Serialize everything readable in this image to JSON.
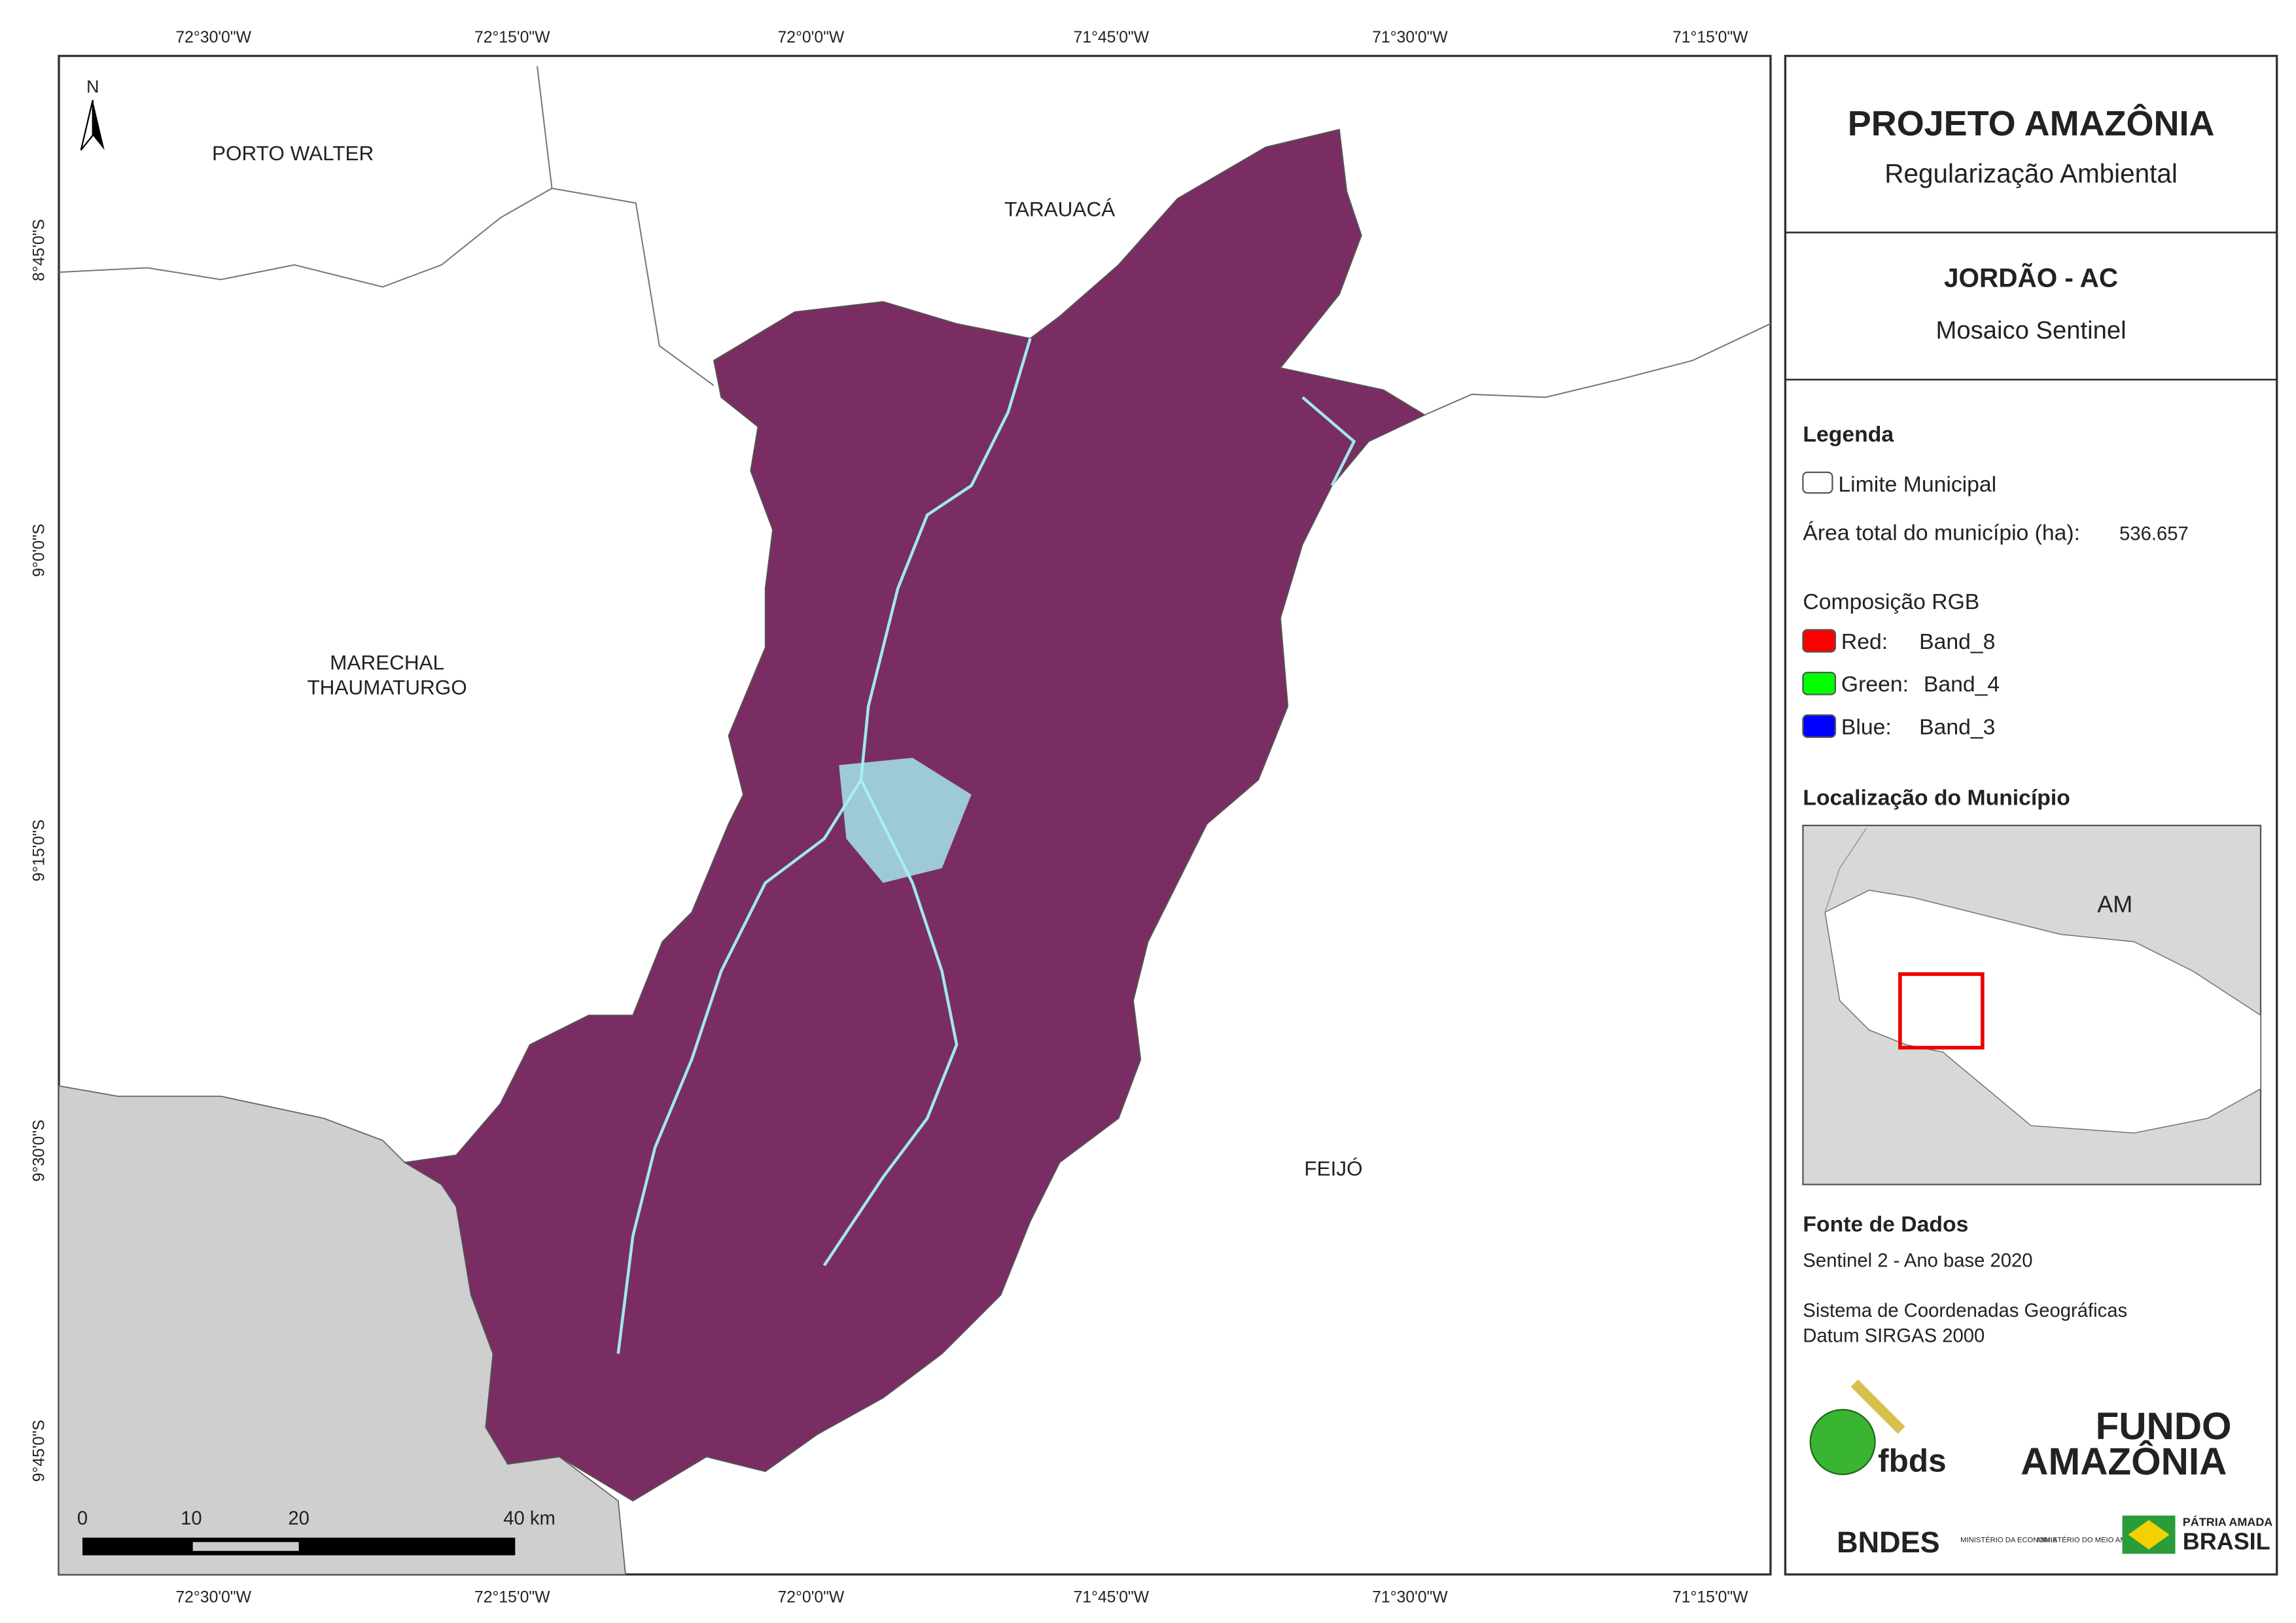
{
  "grid": {
    "lon_labels": [
      "72°30'0\"W",
      "72°15'0\"W",
      "72°0'0\"W",
      "71°45'0\"W",
      "71°30'0\"W",
      "71°15'0\"W"
    ],
    "lat_labels": [
      "8°45'0\"S",
      "9°0'0\"S",
      "9°15'0\"S",
      "9°30'0\"S",
      "9°45'0\"S"
    ]
  },
  "map": {
    "north": "N",
    "places": {
      "porto_walter": "PORTO WALTER",
      "tarauaca": "TARAUACÁ",
      "marechal": [
        "MARECHAL",
        "THAUMATURGO"
      ],
      "feijo": "FEIJÓ"
    },
    "scale_bar": [
      "0",
      "10",
      "20",
      "40 km"
    ]
  },
  "header": {
    "title": "PROJETO AMAZÔNIA",
    "subtitle": "Regularização Ambiental",
    "municipality": "JORDÃO - AC",
    "product": "Mosaico Sentinel"
  },
  "legend": {
    "title": "Legenda",
    "boundary": "Limite Municipal",
    "area_label": "Área total do município (ha):",
    "area_value": "536.657",
    "rgb_title": "Composição RGB",
    "bands": [
      {
        "label": "Red:",
        "band": "Band_8"
      },
      {
        "label": "Green:",
        "band": "Band_4"
      },
      {
        "label": "Blue:",
        "band": "Band_3"
      }
    ]
  },
  "location": {
    "title": "Localização do Município",
    "state": "AM"
  },
  "sources": {
    "title": "Fonte de Dados",
    "lines": [
      "Sentinel 2 - Ano base 2020",
      "Sistema de Coordenadas Geográficas",
      "Datum SIRGAS 2000"
    ]
  },
  "logos": {
    "fbds": "fbds",
    "fundo": "FUNDO",
    "amazonia": "AMAZÔNIA",
    "bndes": "BNDES",
    "min1": "MINISTÉRIO DA ECONOMIA",
    "min2": "MINISTÉRIO DO MEIO AMBIENTE",
    "patria": "PÁTRIA AMADA",
    "brasil": "BRASIL"
  }
}
